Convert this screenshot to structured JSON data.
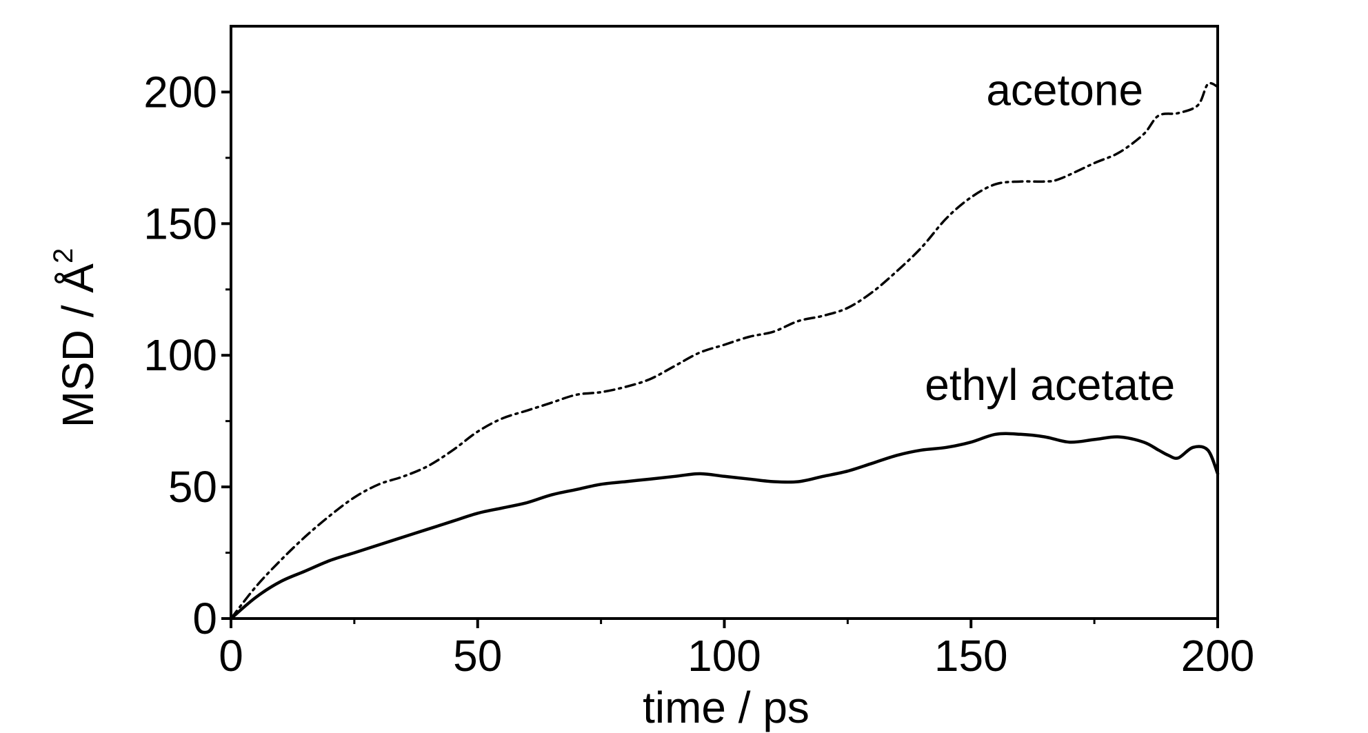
{
  "chart_data": {
    "type": "line",
    "xlabel": "time / ps",
    "ylabel": "MSD / Å",
    "ylabel_superscript": "2",
    "xlim": [
      0,
      200
    ],
    "ylim": [
      0,
      225
    ],
    "xticks": [
      0,
      50,
      100,
      150,
      200
    ],
    "xtick_labels": [
      "0",
      "50",
      "100",
      "150",
      "200"
    ],
    "yticks": [
      0,
      50,
      100,
      150,
      200
    ],
    "ytick_labels": [
      "0",
      "50",
      "100",
      "150",
      "200"
    ],
    "grid": false,
    "legend": "none",
    "series": [
      {
        "name": "acetone",
        "style": "dash-dot",
        "color": "#000000",
        "x": [
          0,
          5,
          10,
          15,
          20,
          25,
          30,
          35,
          40,
          45,
          50,
          55,
          60,
          65,
          70,
          75,
          80,
          85,
          90,
          95,
          100,
          105,
          110,
          115,
          120,
          125,
          130,
          135,
          140,
          145,
          150,
          155,
          160,
          165,
          168,
          175,
          180,
          185,
          188,
          192,
          196,
          198,
          200
        ],
        "y": [
          0,
          12,
          22,
          31,
          39,
          46,
          51,
          54,
          58,
          64,
          71,
          76,
          79,
          82,
          85,
          86,
          88,
          91,
          96,
          101,
          104,
          107,
          109,
          113,
          115,
          118,
          124,
          132,
          141,
          152,
          160,
          165,
          166,
          166,
          167,
          173,
          177,
          184,
          191,
          192,
          195,
          203,
          202
        ]
      },
      {
        "name": "ethyl acetate",
        "style": "solid",
        "color": "#000000",
        "x": [
          0,
          5,
          10,
          15,
          20,
          25,
          30,
          35,
          40,
          45,
          50,
          55,
          60,
          65,
          70,
          75,
          80,
          85,
          90,
          95,
          100,
          105,
          110,
          115,
          120,
          125,
          130,
          135,
          140,
          145,
          150,
          155,
          160,
          165,
          170,
          175,
          180,
          185,
          188,
          190,
          192,
          195,
          198,
          200
        ],
        "y": [
          0,
          8,
          14,
          18,
          22,
          25,
          28,
          31,
          34,
          37,
          40,
          42,
          44,
          47,
          49,
          51,
          52,
          53,
          54,
          55,
          54,
          53,
          52,
          52,
          54,
          56,
          59,
          62,
          64,
          65,
          67,
          70,
          70,
          69,
          67,
          68,
          69,
          67,
          64,
          62,
          61,
          65,
          64,
          55
        ]
      }
    ],
    "annotations": [
      {
        "text": "acetone",
        "x": 169,
        "y": 195
      },
      {
        "text": "ethyl acetate",
        "x": 166,
        "y": 83
      }
    ]
  }
}
